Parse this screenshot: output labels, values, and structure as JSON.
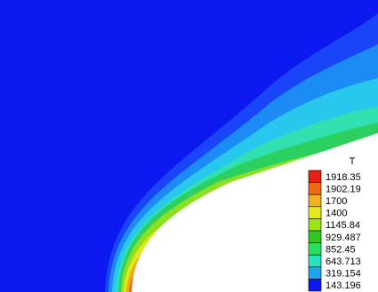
{
  "chart_data": {
    "type": "heatmap",
    "title": "",
    "variable": "T",
    "background_color": "#0b18f0",
    "legend": {
      "title": "T",
      "placement": "bottom-right",
      "levels": [
        {
          "value": "1918.35",
          "color": "#e52010"
        },
        {
          "value": "1902.19",
          "color": "#f06a10"
        },
        {
          "value": "1700",
          "color": "#f2b21e"
        },
        {
          "value": "1400",
          "color": "#e4ea20"
        },
        {
          "value": "1145.84",
          "color": "#9be418"
        },
        {
          "value": "929.487",
          "color": "#30c81c"
        },
        {
          "value": "852.45",
          "color": "#28e05a"
        },
        {
          "value": "643.713",
          "color": "#28e2c0"
        },
        {
          "value": "319.154",
          "color": "#1ea6f0"
        },
        {
          "value": "143.196",
          "color": "#0b18f0"
        }
      ]
    },
    "field_bands": [
      {
        "level": "143.196",
        "color": "#1a44f8"
      },
      {
        "level": "319.154",
        "color": "#1c8cf4"
      },
      {
        "level": "643.713",
        "color": "#28c8ee"
      },
      {
        "level": "852.45",
        "color": "#30e0b0"
      },
      {
        "level": "929.487",
        "color": "#2cd060"
      },
      {
        "level": "1145.84",
        "color": "#8ce020"
      },
      {
        "level": "1400",
        "color": "#e0e81c"
      },
      {
        "level": "1700",
        "color": "#f0a81a"
      },
      {
        "level": "1902.19",
        "color": "#f06010"
      }
    ],
    "body_fill": "#ffffff"
  }
}
